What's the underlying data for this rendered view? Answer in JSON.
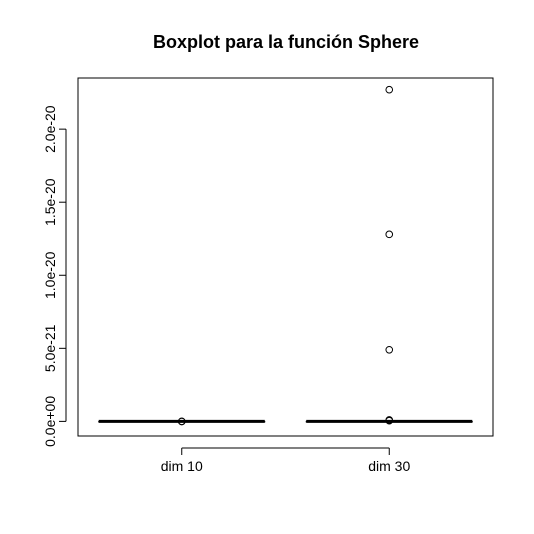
{
  "chart_data": {
    "type": "boxplot",
    "title": "Boxplot para la función Sphere",
    "xlabel": "",
    "ylabel": "",
    "categories": [
      "dim 10",
      "dim 30"
    ],
    "ylim": [
      -1e-21,
      2.35e-20
    ],
    "yticks": [
      0,
      5e-21,
      1e-20,
      1.5e-20,
      2e-20
    ],
    "ytick_labels": [
      "0.0e+00",
      "5.0e-21",
      "1.0e-20",
      "1.5e-20",
      "2.0e-20"
    ],
    "grid": false,
    "series": [
      {
        "category": "dim 10",
        "min": 0,
        "q1": 0,
        "median": 0,
        "q3": 0,
        "max": 0,
        "outliers": [
          0,
          0
        ]
      },
      {
        "category": "dim 30",
        "min": 0,
        "q1": 0,
        "median": 0,
        "q3": 0,
        "max": 0,
        "outliers": [
          2.27e-20,
          1.28e-20,
          4.9e-21,
          1e-22,
          5e-23
        ]
      }
    ]
  }
}
